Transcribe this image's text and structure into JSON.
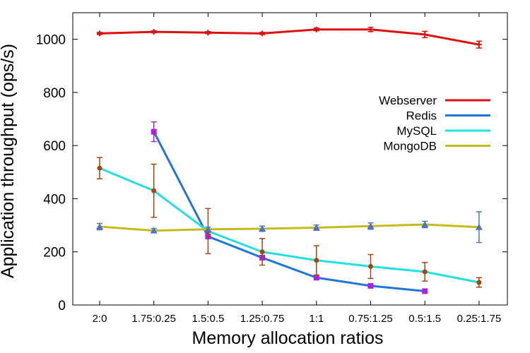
{
  "chart_data": {
    "type": "line",
    "xlabel": "Memory allocation ratios",
    "ylabel": "Application throughput (ops/s)",
    "categories": [
      "2:0",
      "1.75:0.25",
      "1.5:0.5",
      "1.25:0.75",
      "1:1",
      "0.75:1.25",
      "0.5:1.5",
      "0.25:1.75"
    ],
    "ylim": [
      0,
      1100
    ],
    "yticks": [
      0,
      200,
      400,
      600,
      800,
      1000
    ],
    "grid": false,
    "legend": "right",
    "series": [
      {
        "name": "Webserver",
        "color": "#dd1111",
        "marker_color": "#dd1111",
        "marker": "plus",
        "values": [
          1022,
          1028,
          1025,
          1022,
          1037,
          1037,
          1018,
          980
        ],
        "errors": [
          4,
          4,
          4,
          4,
          5,
          8,
          12,
          13
        ]
      },
      {
        "name": "Redis",
        "color": "#1f75d8",
        "marker_color": "#b020e0",
        "marker": "square",
        "values": [
          null,
          652,
          258,
          178,
          103,
          72,
          52,
          null
        ],
        "errors": [
          null,
          37,
          0,
          0,
          0,
          0,
          0,
          null
        ]
      },
      {
        "name": "MySQL",
        "color": "#22e0e0",
        "marker_color": "#a84410",
        "marker": "dot",
        "values": [
          515,
          430,
          278,
          200,
          168,
          145,
          125,
          85
        ],
        "errors": [
          40,
          100,
          85,
          50,
          55,
          45,
          35,
          18
        ]
      },
      {
        "name": "MongoDB",
        "color": "#c4bc1c",
        "marker_color": "#4f72c4",
        "marker": "triangle",
        "values": [
          295,
          280,
          285,
          287,
          291,
          297,
          303,
          293
        ],
        "errors": [
          12,
          8,
          8,
          10,
          10,
          12,
          12,
          58
        ]
      }
    ]
  }
}
